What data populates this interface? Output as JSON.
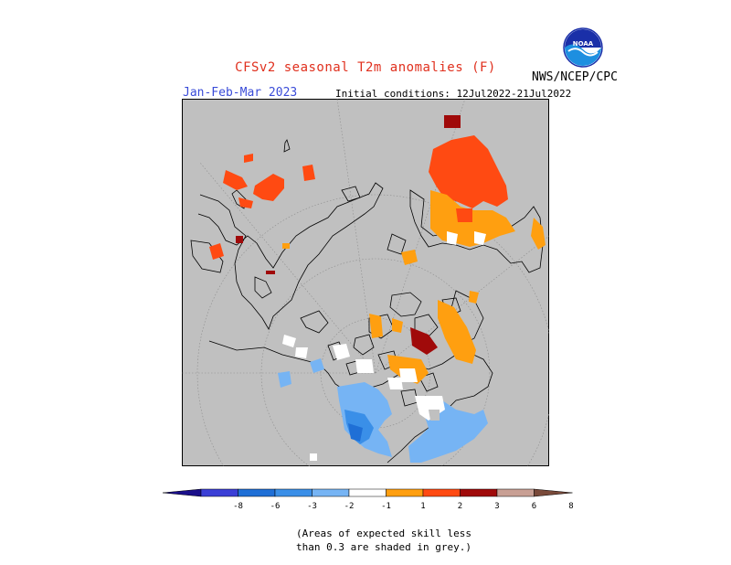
{
  "header": {
    "title": "CFSv2 seasonal T2m anomalies (F)",
    "period": "Jan-Feb-Mar 2023",
    "initial_conditions": "Initial conditions: 12Jul2022-21Jul2022",
    "organization": "NWS/NCEP/CPC",
    "logo_text": "NOAA"
  },
  "colorbar": {
    "labels": [
      "-8",
      "-6",
      "-3",
      "-2",
      "-1",
      "1",
      "2",
      "3",
      "6",
      "8"
    ],
    "colors": [
      "#1a0f8a",
      "#3b3fd6",
      "#1f6fd6",
      "#3a8fe8",
      "#76b4f4",
      "#ffffff",
      "#ff9f10",
      "#ff4a12",
      "#a00a0a",
      "#c89f94",
      "#7a4a3a"
    ]
  },
  "legend_note": {
    "line1": "(Areas of expected skill less",
    "line2": "than 0.3 are shaded in grey.)"
  },
  "map": {
    "background": "#c0c0c0",
    "skill_shading": "grey"
  }
}
